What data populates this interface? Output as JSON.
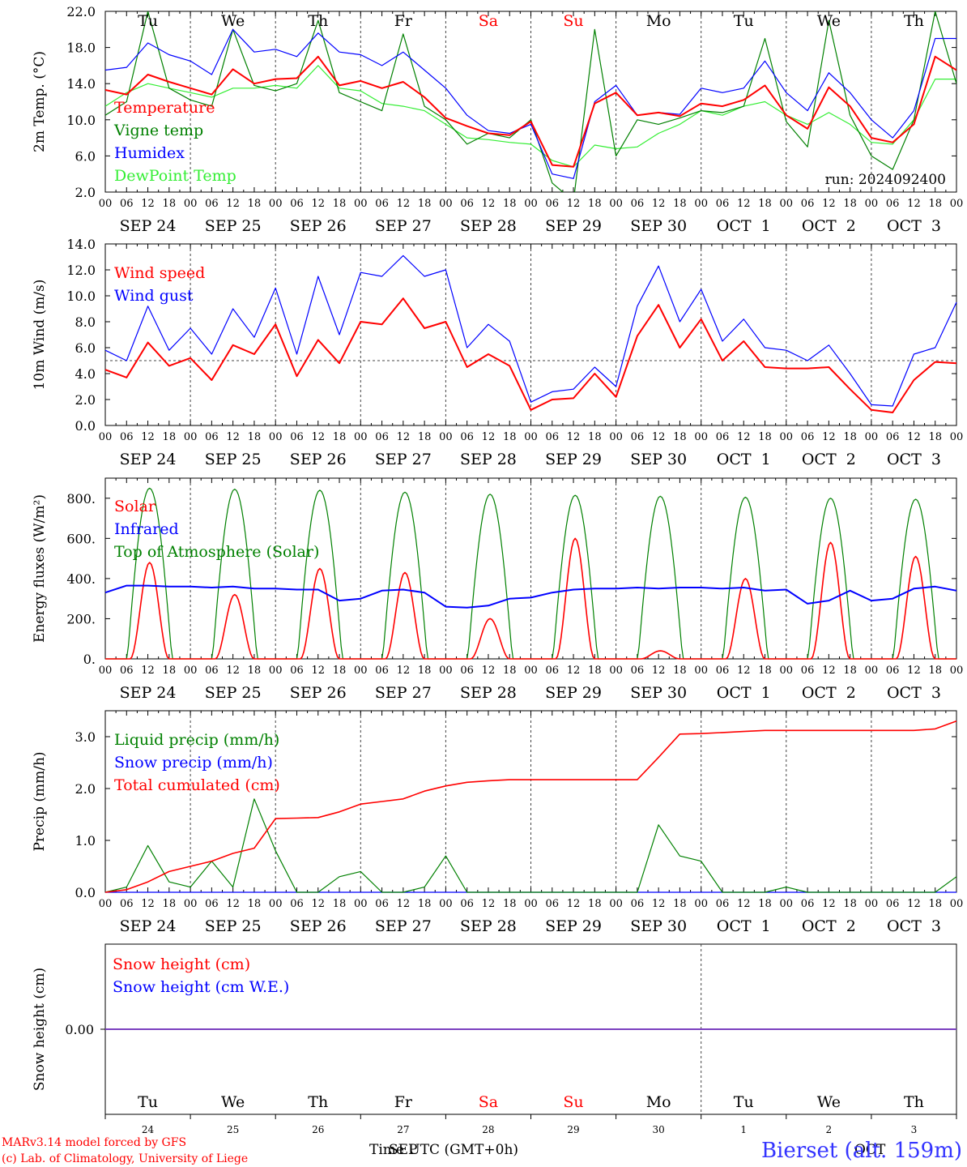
{
  "footer": {
    "credit_line1": "MARv3.14 model forced by GFS",
    "credit_line2": "(c) Lab. of Climatology, University of Liege",
    "time_label": "Time UTC (GMT+0h)",
    "station": "Bierset (alt. 159m)",
    "month_overlay_sep": "SEP",
    "month_overlay_oct": "OCT"
  },
  "colors": {
    "red": "#ff0000",
    "green": "#008000",
    "blue": "#0000ff",
    "light_green": "#33ee33",
    "purple": "#7b3fbf",
    "grid": "#555555"
  },
  "days": {
    "weekdays": [
      "Tu",
      "We",
      "Th",
      "Fr",
      "Sa",
      "Su",
      "Mo",
      "Tu",
      "We",
      "Th"
    ],
    "weekend_indices": [
      4,
      5
    ],
    "dates": [
      "SEP 24",
      "SEP 25",
      "SEP 26",
      "SEP 27",
      "SEP 28",
      "SEP 29",
      "SEP 30",
      "OCT  1",
      "OCT  2",
      "OCT  3"
    ],
    "day_numbers": [
      "24",
      "25",
      "26",
      "27",
      "28",
      "29",
      "30",
      "1",
      "2",
      "3"
    ],
    "hour_ticks": [
      "00",
      "06",
      "12",
      "18"
    ],
    "last_hour": "00"
  },
  "chart_data": [
    {
      "type": "line",
      "ylabel": "2m Temp. (°C)",
      "ylim": [
        2,
        22
      ],
      "yticks": [
        "2.0",
        "6.0",
        "10.0",
        "14.0",
        "18.0",
        "22.0"
      ],
      "annotation": "run: 2024092400",
      "legend_placement": "top-left",
      "x_hours": [
        0,
        6,
        12,
        18,
        24,
        30,
        36,
        42,
        48,
        54,
        60,
        66,
        72,
        78,
        84,
        90,
        96,
        102,
        108,
        114,
        120,
        126,
        132,
        138,
        144,
        150,
        156,
        162,
        168,
        174,
        180,
        186,
        192,
        198,
        204,
        210,
        216,
        222,
        228,
        234,
        240
      ],
      "series": [
        {
          "name": "Temperature",
          "color": "#ff0000",
          "values": [
            13.3,
            12.8,
            15.0,
            14.2,
            13.5,
            12.8,
            15.6,
            14.0,
            14.5,
            14.6,
            17.0,
            13.8,
            14.3,
            13.5,
            14.2,
            12.5,
            10.2,
            9.3,
            8.5,
            8.3,
            9.8,
            5.0,
            4.8,
            11.8,
            13.0,
            10.5,
            10.8,
            10.4,
            11.8,
            11.5,
            12.2,
            13.8,
            10.5,
            9.0,
            13.6,
            11.5,
            8.0,
            7.5,
            9.5,
            17.0,
            15.5
          ]
        },
        {
          "name": "Vigne temp",
          "color": "#008000",
          "values": [
            10.5,
            12.0,
            22.0,
            13.5,
            12.2,
            11.5,
            20.0,
            13.8,
            13.2,
            14.0,
            21.0,
            13.0,
            12.0,
            11.0,
            19.5,
            11.5,
            10.0,
            7.3,
            8.5,
            8.0,
            10.0,
            3.0,
            1.0,
            20.0,
            6.0,
            10.0,
            9.5,
            10.2,
            11.0,
            10.8,
            11.5,
            19.0,
            9.8,
            7.0,
            21.0,
            10.5,
            6.0,
            4.5,
            10.0,
            22.0,
            14.0
          ]
        },
        {
          "name": "Humidex",
          "color": "#0000ff",
          "values": [
            15.5,
            15.8,
            18.5,
            17.2,
            16.5,
            15.0,
            20.0,
            17.5,
            17.8,
            17.0,
            19.6,
            17.5,
            17.2,
            16.0,
            17.5,
            15.5,
            13.5,
            10.5,
            8.8,
            8.5,
            9.5,
            4.0,
            3.5,
            12.0,
            13.8,
            10.5,
            10.8,
            10.6,
            13.5,
            13.0,
            13.5,
            16.5,
            13.0,
            11.0,
            15.2,
            13.0,
            10.0,
            8.0,
            11.0,
            19.0,
            19.0
          ]
        },
        {
          "name": "DewPoint Temp",
          "color": "#33ee33",
          "values": [
            11.5,
            13.0,
            14.0,
            13.5,
            13.0,
            12.5,
            13.5,
            13.5,
            13.8,
            13.5,
            16.0,
            13.5,
            13.2,
            11.8,
            11.5,
            11.0,
            9.5,
            8.0,
            7.8,
            7.5,
            7.3,
            5.5,
            4.8,
            7.2,
            6.8,
            7.0,
            8.5,
            9.5,
            11.0,
            10.5,
            11.5,
            12.0,
            10.5,
            9.5,
            10.8,
            9.5,
            7.5,
            7.3,
            10.0,
            14.5,
            14.5
          ]
        }
      ]
    },
    {
      "type": "line",
      "ylabel": "10m Wind (m/s)",
      "ylim": [
        0,
        14
      ],
      "yticks": [
        "0.0",
        "2.0",
        "4.0",
        "6.0",
        "8.0",
        "10.0",
        "12.0",
        "14.0"
      ],
      "reference_line": 5,
      "legend_placement": "top-left",
      "x_hours": [
        0,
        6,
        12,
        18,
        24,
        30,
        36,
        42,
        48,
        54,
        60,
        66,
        72,
        78,
        84,
        90,
        96,
        102,
        108,
        114,
        120,
        126,
        132,
        138,
        144,
        150,
        156,
        162,
        168,
        174,
        180,
        186,
        192,
        198,
        204,
        210,
        216,
        222,
        228,
        234,
        240
      ],
      "series": [
        {
          "name": "Wind speed",
          "color": "#ff0000",
          "values": [
            4.3,
            3.7,
            6.4,
            4.6,
            5.2,
            3.5,
            6.2,
            5.5,
            7.8,
            3.8,
            6.6,
            4.8,
            8.0,
            7.8,
            9.8,
            7.5,
            8.0,
            4.5,
            5.5,
            4.6,
            1.2,
            2.0,
            2.1,
            4.0,
            2.2,
            6.9,
            9.3,
            6.0,
            8.2,
            5.0,
            6.5,
            4.5,
            4.4,
            4.4,
            4.5,
            2.8,
            1.2,
            1.0,
            3.5,
            4.9,
            4.8
          ]
        },
        {
          "name": "Wind gust",
          "color": "#0000ff",
          "values": [
            5.8,
            5.0,
            9.2,
            5.8,
            7.5,
            5.5,
            9.0,
            6.8,
            10.6,
            5.5,
            11.5,
            7.0,
            11.8,
            11.5,
            13.1,
            11.5,
            12.0,
            6.0,
            7.8,
            6.5,
            1.8,
            2.6,
            2.8,
            4.5,
            3.0,
            9.2,
            12.3,
            8.0,
            10.5,
            6.5,
            8.2,
            6.0,
            5.8,
            5.0,
            6.2,
            4.0,
            1.6,
            1.5,
            5.5,
            6.0,
            9.5
          ]
        }
      ]
    },
    {
      "type": "line",
      "ylabel": "Energy fluxes (W/m²)",
      "ylim": [
        0,
        900
      ],
      "yticks": [
        "0.",
        "200.",
        "400.",
        "600.",
        "800."
      ],
      "legend_placement": "top-left",
      "series": [
        {
          "name": "Solar",
          "color": "#ff0000",
          "daily_peak": [
            480,
            320,
            450,
            430,
            200,
            600,
            40,
            400,
            580,
            510
          ],
          "note": "daytime curves between 06 and 18 UTC"
        },
        {
          "name": "Infrared",
          "color": "#0000ff",
          "values": [
            330,
            365,
            365,
            360,
            360,
            355,
            360,
            350,
            350,
            345,
            345,
            290,
            300,
            340,
            345,
            330,
            260,
            255,
            265,
            300,
            305,
            330,
            345,
            350,
            350,
            355,
            350,
            355,
            355,
            350,
            355,
            340,
            345,
            275,
            290,
            340,
            290,
            300,
            350,
            360,
            340
          ]
        },
        {
          "name": "Top of Atmosphere (Solar)",
          "color": "#008000",
          "daily_peak": [
            850,
            845,
            840,
            830,
            820,
            815,
            810,
            805,
            800,
            795
          ]
        }
      ]
    },
    {
      "type": "line",
      "ylabel": "Precip (mm/h)",
      "ylim": [
        0,
        3.5
      ],
      "yticks": [
        "0.0",
        "1.0",
        "2.0",
        "3.0"
      ],
      "legend_placement": "top-left",
      "x_hours": [
        0,
        6,
        12,
        18,
        24,
        30,
        36,
        42,
        48,
        54,
        60,
        66,
        72,
        78,
        84,
        90,
        96,
        102,
        108,
        114,
        120,
        126,
        132,
        138,
        144,
        150,
        156,
        162,
        168,
        174,
        180,
        186,
        192,
        198,
        204,
        210,
        216,
        222,
        228,
        234,
        240
      ],
      "series": [
        {
          "name": "Liquid precip (mm/h)",
          "color": "#008000",
          "values": [
            0.0,
            0.1,
            0.9,
            0.2,
            0.1,
            0.6,
            0.1,
            1.8,
            0.8,
            0.0,
            0.0,
            0.3,
            0.4,
            0.0,
            0.0,
            0.1,
            0.7,
            0.0,
            0.0,
            0.0,
            0.0,
            0.0,
            0.0,
            0.0,
            0.0,
            0.0,
            1.3,
            0.7,
            0.6,
            0.0,
            0.0,
            0.0,
            0.1,
            0.0,
            0.0,
            0.0,
            0.0,
            0.0,
            0.0,
            0.0,
            0.3
          ]
        },
        {
          "name": "Snow precip (mm/h)",
          "color": "#0000ff",
          "values": [
            0,
            0,
            0,
            0,
            0,
            0,
            0,
            0,
            0,
            0,
            0,
            0,
            0,
            0,
            0,
            0,
            0,
            0,
            0,
            0,
            0,
            0,
            0,
            0,
            0,
            0,
            0,
            0,
            0,
            0,
            0,
            0,
            0,
            0,
            0,
            0,
            0,
            0,
            0,
            0,
            0
          ]
        },
        {
          "name": "Total cumulated (cm)",
          "color": "#ff0000",
          "values": [
            0.0,
            0.05,
            0.2,
            0.4,
            0.5,
            0.6,
            0.75,
            0.85,
            1.42,
            1.43,
            1.44,
            1.55,
            1.7,
            1.75,
            1.8,
            1.95,
            2.05,
            2.12,
            2.15,
            2.17,
            2.17,
            2.17,
            2.17,
            2.17,
            2.17,
            2.17,
            2.6,
            3.05,
            3.06,
            3.08,
            3.1,
            3.12,
            3.12,
            3.12,
            3.12,
            3.12,
            3.12,
            3.12,
            3.12,
            3.15,
            3.3
          ]
        }
      ]
    },
    {
      "type": "line",
      "ylabel": "Snow height (cm)",
      "yticks": [
        "0.00"
      ],
      "legend_placement": "top-left",
      "series": [
        {
          "name": "Snow height (cm)",
          "color": "#ff0000",
          "values": [
            0,
            0
          ]
        },
        {
          "name": "Snow height (cm W.E.)",
          "color": "#0000ff",
          "values": [
            0,
            0
          ]
        }
      ]
    }
  ]
}
